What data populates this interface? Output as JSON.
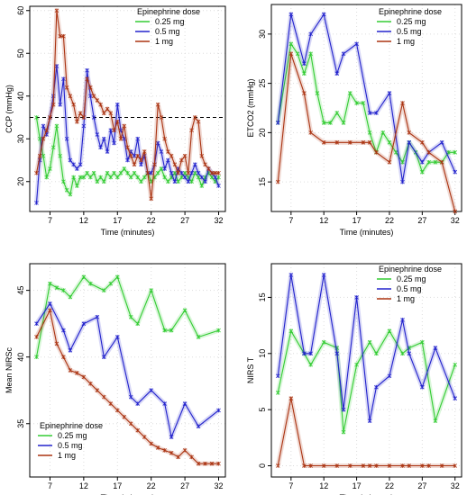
{
  "colors": {
    "green": "#33cc33",
    "blue": "#2222cc",
    "red": "#aa3311",
    "dashed": "#000000"
  },
  "chart_data": [
    {
      "id": "ccp",
      "type": "line",
      "xlabel": "Time (minutes)",
      "ylabel": "CCP (mmHg)",
      "xlim": [
        4,
        33
      ],
      "ylim": [
        13,
        61
      ],
      "xticks": [
        7,
        12,
        17,
        22,
        27,
        32
      ],
      "yticks": [
        20,
        30,
        40,
        50,
        60
      ],
      "reference_line": 35,
      "legend": {
        "title": "Epinephrine dose",
        "position": "top-right",
        "entries": [
          "0.25 mg",
          "0.5 mg",
          "1 mg"
        ]
      },
      "series": [
        {
          "name": "0.25 mg",
          "color": "green",
          "x": [
            5,
            5.5,
            6,
            6.5,
            7,
            7.5,
            8,
            8.5,
            9,
            9.5,
            10,
            10.5,
            11,
            11.5,
            12,
            12.5,
            13,
            13.5,
            14,
            14.5,
            15,
            15.5,
            16,
            16.5,
            17,
            17.5,
            18,
            18.5,
            19,
            19.5,
            20,
            20.5,
            21,
            21.5,
            22,
            22.5,
            23,
            23.5,
            24,
            24.5,
            25,
            25.5,
            26,
            26.5,
            27,
            27.5,
            28,
            28.5,
            29,
            29.5,
            30,
            30.5,
            31,
            31.5,
            32
          ],
          "y": [
            35,
            30,
            26,
            21,
            23,
            28,
            33,
            26,
            20,
            18,
            17,
            21,
            19,
            21,
            21,
            22,
            21,
            22,
            20,
            21,
            20,
            22,
            21,
            22,
            21,
            22,
            23,
            22,
            21,
            22,
            21,
            20,
            21,
            22,
            20,
            21,
            22,
            23,
            21,
            20,
            21,
            22,
            20,
            21,
            22,
            21,
            20,
            22,
            21,
            19,
            21,
            22,
            21,
            20,
            21
          ]
        },
        {
          "name": "0.5 mg",
          "color": "blue",
          "x": [
            5,
            5.5,
            6,
            6.5,
            7,
            7.5,
            8,
            8.5,
            9,
            9.5,
            10,
            10.5,
            11,
            11.5,
            12,
            12.5,
            13,
            13.5,
            14,
            14.5,
            15,
            15.5,
            16,
            16.5,
            17,
            17.5,
            18,
            18.5,
            19,
            19.5,
            20,
            20.5,
            21,
            21.5,
            22,
            22.5,
            23,
            23.5,
            24,
            24.5,
            25,
            25.5,
            26,
            26.5,
            27,
            27.5,
            28,
            28.5,
            29,
            29.5,
            30,
            30.5,
            31,
            31.5,
            32
          ],
          "y": [
            15,
            25,
            33,
            31,
            35,
            40,
            47,
            38,
            44,
            30,
            25,
            24,
            23,
            24,
            33,
            46,
            40,
            35,
            31,
            28,
            30,
            27,
            32,
            29,
            38,
            32,
            30,
            25,
            27,
            26,
            30,
            24,
            26,
            22,
            22,
            24,
            29,
            27,
            23,
            25,
            22,
            20,
            23,
            22,
            21,
            20,
            22,
            24,
            22,
            21,
            20,
            23,
            22,
            21,
            19
          ]
        },
        {
          "name": "1 mg",
          "color": "red",
          "x": [
            5,
            5.5,
            6,
            6.5,
            7,
            7.5,
            8,
            8.5,
            9,
            9.5,
            10,
            10.5,
            11,
            11.5,
            12,
            12.5,
            13,
            13.5,
            14,
            14.5,
            15,
            15.5,
            16,
            16.5,
            17,
            17.5,
            18,
            18.5,
            19,
            19.5,
            20,
            20.5,
            21,
            21.5,
            22,
            22.5,
            23,
            23.5,
            24,
            24.5,
            25,
            25.5,
            26,
            26.5,
            27,
            27.5,
            28,
            28.5,
            29,
            29.5,
            30,
            30.5,
            31,
            31.5,
            32
          ],
          "y": [
            22,
            26,
            30,
            32,
            35,
            38,
            60,
            54,
            54,
            42,
            40,
            38,
            34,
            36,
            35,
            44,
            42,
            40,
            39,
            38,
            36,
            37,
            36,
            32,
            34,
            30,
            33,
            28,
            26,
            24,
            26,
            25,
            27,
            22,
            16,
            24,
            38,
            35,
            30,
            27,
            26,
            24,
            22,
            25,
            26,
            22,
            32,
            35,
            34,
            26,
            24,
            23,
            22,
            22,
            22
          ]
        }
      ]
    },
    {
      "id": "etco2",
      "type": "line",
      "xlabel": "Time (minutes)",
      "ylabel": "ETCO2 (mmHg)",
      "xlim": [
        4,
        33
      ],
      "ylim": [
        12,
        33
      ],
      "xticks": [
        7,
        12,
        17,
        22,
        27,
        32
      ],
      "yticks": [
        15,
        20,
        25,
        30
      ],
      "legend": {
        "title": "Epinephrine dose",
        "position": "top-right",
        "entries": [
          "0.25 mg",
          "0.5 mg",
          "1 mg"
        ]
      },
      "series": [
        {
          "name": "0.25 mg",
          "color": "green",
          "x": [
            5,
            7,
            8,
            9,
            10,
            11,
            12,
            13,
            14,
            15,
            16,
            17,
            18,
            19,
            20,
            21,
            22,
            23,
            24,
            25,
            26,
            27,
            28,
            29,
            30,
            31,
            32
          ],
          "y": [
            21,
            29,
            28,
            26,
            28,
            24,
            21,
            21,
            22,
            21,
            24,
            23,
            23,
            20,
            18,
            20,
            19,
            18,
            17,
            19,
            18,
            16,
            17,
            17,
            17,
            18,
            18
          ]
        },
        {
          "name": "0.5 mg",
          "color": "blue",
          "x": [
            5,
            7,
            9,
            10,
            12,
            14,
            15,
            17,
            19,
            20,
            22,
            24,
            25,
            27,
            28,
            30,
            32
          ],
          "y": [
            21,
            32,
            27,
            30,
            32,
            26,
            28,
            29,
            22,
            22,
            24,
            15,
            19,
            17,
            18,
            19,
            16
          ]
        },
        {
          "name": "1 mg",
          "color": "red",
          "x": [
            5,
            7,
            9,
            10,
            12,
            14,
            16,
            18,
            19,
            20,
            22,
            24,
            25,
            27,
            28,
            30,
            32
          ],
          "y": [
            15,
            28,
            24,
            20,
            19,
            19,
            19,
            19,
            19,
            18,
            17,
            23,
            20,
            19,
            18,
            17,
            12
          ]
        }
      ]
    },
    {
      "id": "nirsc",
      "type": "line",
      "xlabel": "Time (minutes)",
      "ylabel": "Mean NIRSc",
      "xlim": [
        4,
        33
      ],
      "ylim": [
        31,
        47
      ],
      "xticks": [
        7,
        12,
        17,
        22,
        27,
        32
      ],
      "yticks": [
        35,
        40,
        45
      ],
      "legend": {
        "title": "Epinephrine dose",
        "position": "bottom-left",
        "entries": [
          "0.25 mg",
          "0.5 mg",
          "1 mg"
        ]
      },
      "series": [
        {
          "name": "0.25 mg",
          "color": "green",
          "x": [
            5,
            7,
            8,
            9,
            10,
            12,
            13,
            15,
            16,
            17,
            19,
            20,
            22,
            24,
            25,
            27,
            29,
            32
          ],
          "y": [
            40,
            45.5,
            45.2,
            45,
            44.5,
            46,
            45.5,
            45,
            45.5,
            46,
            43,
            42.5,
            45,
            42,
            42,
            43.5,
            41.5,
            42
          ]
        },
        {
          "name": "0.5 mg",
          "color": "blue",
          "x": [
            5,
            7,
            9,
            10,
            12,
            14,
            15,
            17,
            19,
            20,
            22,
            24,
            25,
            27,
            29,
            32
          ],
          "y": [
            42.5,
            44,
            42,
            40.5,
            42.5,
            43,
            40,
            41.5,
            37,
            36.5,
            37.5,
            36.5,
            34,
            36.5,
            34.8,
            36
          ]
        },
        {
          "name": "1 mg",
          "color": "red",
          "x": [
            5,
            7,
            8,
            9,
            10,
            11,
            12,
            13,
            14,
            15,
            16,
            17,
            18,
            19,
            20,
            21,
            22,
            23,
            24,
            25,
            26,
            27,
            28,
            29,
            30,
            31,
            32
          ],
          "y": [
            41.5,
            43.5,
            41,
            40,
            39,
            38.8,
            38.5,
            38,
            37.5,
            37,
            36.5,
            36,
            35.5,
            35,
            34.5,
            34,
            33.5,
            33.2,
            33,
            32.8,
            32.5,
            33,
            32.5,
            32,
            32,
            32,
            32
          ]
        }
      ]
    },
    {
      "id": "nirst",
      "type": "line",
      "xlabel": "Time (minutes)",
      "ylabel": "NIRS T",
      "xlim": [
        4,
        33
      ],
      "ylim": [
        -1,
        18
      ],
      "xticks": [
        7,
        12,
        17,
        22,
        27,
        32
      ],
      "yticks": [
        0,
        5,
        10,
        15
      ],
      "legend": {
        "title": "Epinephrine dose",
        "position": "top-right",
        "entries": [
          "0.25 mg",
          "0.5 mg",
          "1 mg"
        ]
      },
      "series": [
        {
          "name": "0.25 mg",
          "color": "green",
          "x": [
            5,
            7,
            9,
            10,
            12,
            14,
            15,
            17,
            19,
            20,
            22,
            24,
            25,
            27,
            29,
            32
          ],
          "y": [
            6.5,
            12,
            10,
            9,
            11,
            10.5,
            3,
            9,
            11,
            10,
            12,
            10,
            10.5,
            11,
            4,
            9
          ]
        },
        {
          "name": "0.5 mg",
          "color": "blue",
          "x": [
            5,
            7,
            9,
            10,
            12,
            14,
            15,
            17,
            19,
            20,
            22,
            24,
            25,
            27,
            29,
            32
          ],
          "y": [
            8,
            17,
            10,
            10,
            17,
            10,
            5,
            15,
            4,
            7,
            8,
            13,
            10,
            7,
            10.5,
            6
          ]
        },
        {
          "name": "1 mg",
          "color": "red",
          "x": [
            5,
            7,
            9,
            10,
            12,
            14,
            16,
            18,
            19,
            20,
            22,
            24,
            25,
            27,
            28,
            30,
            32
          ],
          "y": [
            0,
            6,
            0,
            0,
            0,
            0,
            0,
            0,
            0,
            0,
            0,
            0,
            0,
            0,
            0,
            0,
            0
          ]
        }
      ]
    }
  ]
}
